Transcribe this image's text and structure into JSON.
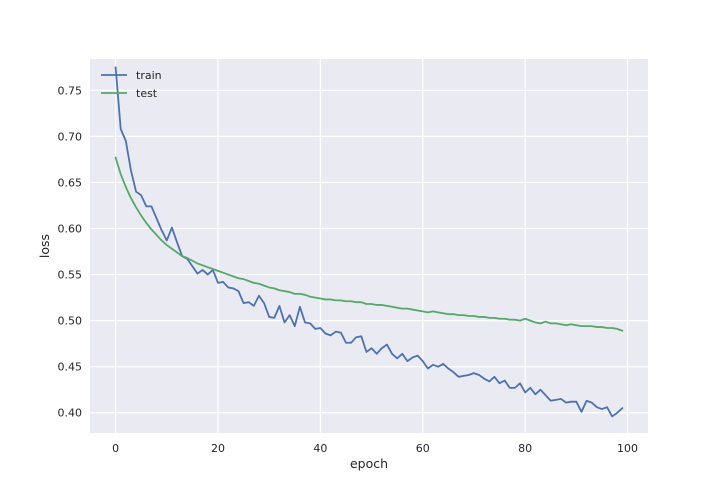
{
  "chart_data": {
    "type": "line",
    "title": "",
    "xlabel": "epoch",
    "ylabel": "loss",
    "xlim": [
      -5,
      104
    ],
    "ylim": [
      0.378,
      0.784
    ],
    "xticks": [
      0,
      20,
      40,
      60,
      80,
      100
    ],
    "yticks": [
      0.4,
      0.45,
      0.5,
      0.55,
      0.6,
      0.65,
      0.7,
      0.75
    ],
    "grid": true,
    "legend_position": "top-left",
    "background": "#eaeaf2",
    "series": [
      {
        "name": "train",
        "color": "#4c72b0",
        "x": [
          0,
          1,
          2,
          3,
          4,
          5,
          6,
          7,
          8,
          9,
          10,
          11,
          12,
          13,
          14,
          15,
          16,
          17,
          18,
          19,
          20,
          21,
          22,
          23,
          24,
          25,
          26,
          27,
          28,
          29,
          30,
          31,
          32,
          33,
          34,
          35,
          36,
          37,
          38,
          39,
          40,
          41,
          42,
          43,
          44,
          45,
          46,
          47,
          48,
          49,
          50,
          51,
          52,
          53,
          54,
          55,
          56,
          57,
          58,
          59,
          60,
          61,
          62,
          63,
          64,
          65,
          66,
          67,
          68,
          69,
          70,
          71,
          72,
          73,
          74,
          75,
          76,
          77,
          78,
          79,
          80,
          81,
          82,
          83,
          84,
          85,
          86,
          87,
          88,
          89,
          90,
          91,
          92,
          93,
          94,
          95,
          96,
          97,
          98,
          99
        ],
        "y": [
          0.775,
          0.708,
          0.695,
          0.663,
          0.64,
          0.636,
          0.624,
          0.624,
          0.611,
          0.598,
          0.587,
          0.601,
          0.585,
          0.57,
          0.567,
          0.559,
          0.551,
          0.555,
          0.55,
          0.555,
          0.541,
          0.542,
          0.536,
          0.535,
          0.532,
          0.519,
          0.52,
          0.516,
          0.527,
          0.519,
          0.504,
          0.503,
          0.516,
          0.498,
          0.506,
          0.494,
          0.515,
          0.498,
          0.497,
          0.491,
          0.492,
          0.486,
          0.484,
          0.488,
          0.487,
          0.476,
          0.476,
          0.482,
          0.483,
          0.466,
          0.47,
          0.464,
          0.47,
          0.474,
          0.464,
          0.459,
          0.464,
          0.456,
          0.46,
          0.462,
          0.456,
          0.448,
          0.452,
          0.45,
          0.453,
          0.448,
          0.444,
          0.439,
          0.44,
          0.441,
          0.443,
          0.441,
          0.437,
          0.434,
          0.439,
          0.432,
          0.435,
          0.427,
          0.427,
          0.432,
          0.422,
          0.427,
          0.42,
          0.425,
          0.419,
          0.413,
          0.414,
          0.415,
          0.411,
          0.412,
          0.412,
          0.401,
          0.413,
          0.411,
          0.406,
          0.404,
          0.406,
          0.396,
          0.4,
          0.405
        ]
      },
      {
        "name": "test",
        "color": "#55a868",
        "x": [
          0,
          1,
          2,
          3,
          4,
          5,
          6,
          7,
          8,
          9,
          10,
          11,
          12,
          13,
          14,
          15,
          16,
          17,
          18,
          19,
          20,
          21,
          22,
          23,
          24,
          25,
          26,
          27,
          28,
          29,
          30,
          31,
          32,
          33,
          34,
          35,
          36,
          37,
          38,
          39,
          40,
          41,
          42,
          43,
          44,
          45,
          46,
          47,
          48,
          49,
          50,
          51,
          52,
          53,
          54,
          55,
          56,
          57,
          58,
          59,
          60,
          61,
          62,
          63,
          64,
          65,
          66,
          67,
          68,
          69,
          70,
          71,
          72,
          73,
          74,
          75,
          76,
          77,
          78,
          79,
          80,
          81,
          82,
          83,
          84,
          85,
          86,
          87,
          88,
          89,
          90,
          91,
          92,
          93,
          94,
          95,
          96,
          97,
          98,
          99
        ],
        "y": [
          0.677,
          0.659,
          0.645,
          0.633,
          0.623,
          0.614,
          0.606,
          0.599,
          0.593,
          0.587,
          0.582,
          0.578,
          0.574,
          0.57,
          0.568,
          0.565,
          0.562,
          0.56,
          0.558,
          0.556,
          0.554,
          0.552,
          0.55,
          0.548,
          0.546,
          0.545,
          0.543,
          0.541,
          0.54,
          0.538,
          0.536,
          0.535,
          0.533,
          0.532,
          0.531,
          0.529,
          0.529,
          0.528,
          0.526,
          0.525,
          0.524,
          0.523,
          0.523,
          0.522,
          0.522,
          0.521,
          0.521,
          0.52,
          0.52,
          0.518,
          0.518,
          0.517,
          0.517,
          0.516,
          0.515,
          0.514,
          0.513,
          0.513,
          0.512,
          0.511,
          0.51,
          0.509,
          0.51,
          0.509,
          0.508,
          0.507,
          0.507,
          0.506,
          0.506,
          0.505,
          0.505,
          0.504,
          0.504,
          0.503,
          0.503,
          0.502,
          0.502,
          0.501,
          0.501,
          0.5,
          0.502,
          0.5,
          0.498,
          0.497,
          0.499,
          0.497,
          0.497,
          0.496,
          0.495,
          0.496,
          0.495,
          0.494,
          0.494,
          0.494,
          0.493,
          0.493,
          0.492,
          0.492,
          0.491,
          0.489
        ]
      }
    ]
  }
}
